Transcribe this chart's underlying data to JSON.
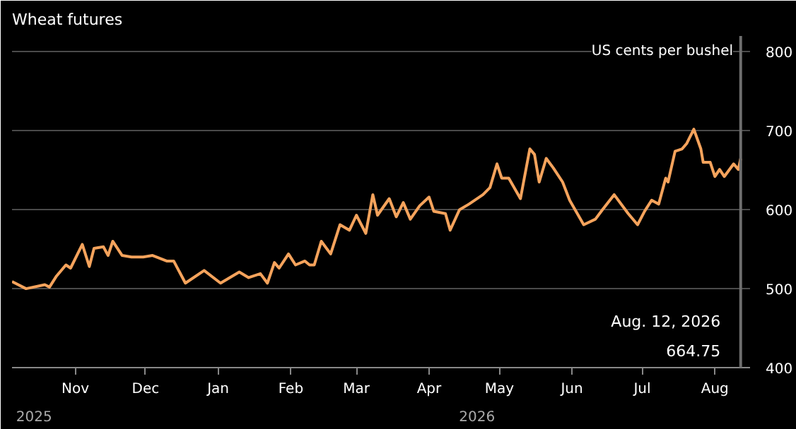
{
  "chart_data": {
    "type": "line",
    "title": "Wheat futures",
    "x": [
      "2025-10-05",
      "2025-10-11",
      "2025-10-19",
      "2025-10-21",
      "2025-10-24",
      "2025-10-28",
      "2025-10-30",
      "2025-11-04",
      "2025-11-07",
      "2025-11-09",
      "2025-11-13",
      "2025-11-15",
      "2025-11-17",
      "2025-11-21",
      "2025-11-25",
      "2025-11-30",
      "2025-12-04",
      "2025-12-10",
      "2025-12-13",
      "2025-12-18",
      "2025-12-26",
      "2026-01-02",
      "2026-01-10",
      "2026-01-14",
      "2026-01-19",
      "2026-01-22",
      "2026-01-25",
      "2026-01-27",
      "2026-01-31",
      "2026-02-03",
      "2026-02-07",
      "2026-02-09",
      "2026-02-11",
      "2026-02-14",
      "2026-02-18",
      "2026-02-22",
      "2026-02-26",
      "2026-03-01",
      "2026-03-05",
      "2026-03-08",
      "2026-03-10",
      "2026-03-15",
      "2026-03-18",
      "2026-03-21",
      "2026-03-24",
      "2026-03-28",
      "2026-04-01",
      "2026-04-03",
      "2026-04-08",
      "2026-04-10",
      "2026-04-14",
      "2026-04-18",
      "2026-04-24",
      "2026-04-27",
      "2026-04-30",
      "2026-05-02",
      "2026-05-05",
      "2026-05-10",
      "2026-05-14",
      "2026-05-16",
      "2026-05-18",
      "2026-05-21",
      "2026-05-24",
      "2026-05-28",
      "2026-05-31",
      "2026-06-06",
      "2026-06-11",
      "2026-06-14",
      "2026-06-19",
      "2026-06-25",
      "2026-06-29",
      "2026-07-02",
      "2026-07-05",
      "2026-07-08",
      "2026-07-11",
      "2026-07-12",
      "2026-07-15",
      "2026-07-18",
      "2026-07-20",
      "2026-07-23",
      "2026-07-26",
      "2026-07-27",
      "2026-07-30",
      "2026-08-01",
      "2026-08-03",
      "2026-08-05",
      "2026-08-09",
      "2026-08-11",
      "2026-08-12"
    ],
    "series": [
      {
        "color": "#f5a35c",
        "values": [
          509,
          500,
          505,
          502,
          516,
          530,
          526,
          556,
          528,
          551,
          553,
          542,
          560,
          542,
          540,
          540,
          542,
          535,
          535,
          507,
          523,
          507,
          521,
          514,
          519,
          507,
          533,
          526,
          544,
          530,
          535,
          530,
          530,
          560,
          544,
          581,
          574,
          593,
          570,
          619,
          593,
          614,
          591,
          609,
          588,
          605,
          616,
          598,
          595,
          574,
          600,
          607,
          619,
          628,
          658,
          640,
          640,
          614,
          677,
          670,
          635,
          665,
          653,
          635,
          612,
          581,
          588,
          600,
          619,
          595,
          581,
          598,
          612,
          607,
          640,
          635,
          674,
          677,
          684,
          702,
          677,
          660,
          660,
          642,
          651,
          642,
          658,
          651,
          664.75
        ]
      }
    ],
    "xlim": [
      "2025-10-05",
      "2026-08-16"
    ],
    "xticks": [
      {
        "value": "2025-11-01",
        "label": "Nov"
      },
      {
        "value": "2025-12-01",
        "label": "Dec"
      },
      {
        "value": "2026-01-01",
        "label": "Jan"
      },
      {
        "value": "2026-02-01",
        "label": "Feb"
      },
      {
        "value": "2026-03-01",
        "label": "Mar"
      },
      {
        "value": "2026-04-01",
        "label": "Apr"
      },
      {
        "value": "2026-05-01",
        "label": "May"
      },
      {
        "value": "2026-06-01",
        "label": "Jun"
      },
      {
        "value": "2026-07-01",
        "label": "Jul"
      },
      {
        "value": "2026-08-01",
        "label": "Aug"
      }
    ],
    "ylim": [
      400,
      820
    ],
    "yticks": [
      400,
      500,
      600,
      700,
      800
    ],
    "ylabel": "US cents per bushel",
    "grid": "y",
    "ref_lines": [
      {
        "axis": "x",
        "value": "2026-08-12",
        "color": "#6e6e6e"
      }
    ],
    "annotations": [
      "2025",
      "2026",
      "Aug. 12, 2026",
      "664.75"
    ]
  }
}
